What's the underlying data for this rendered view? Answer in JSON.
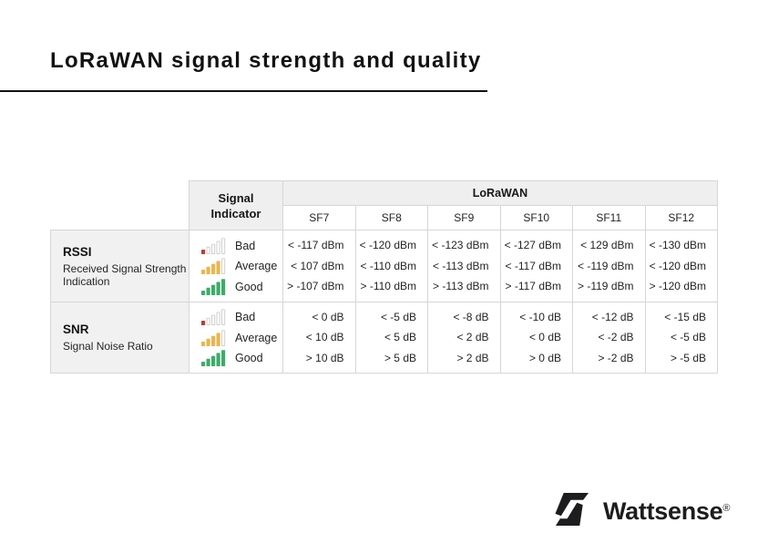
{
  "page": {
    "title": "LoRaWAN signal strength and quality"
  },
  "table": {
    "signal_indicator_header": "Signal Indicator",
    "group_header": "LoRaWAN",
    "sf_columns": [
      "SF7",
      "SF8",
      "SF9",
      "SF10",
      "SF11",
      "SF12"
    ],
    "levels": [
      {
        "label": "Bad",
        "filled": 1,
        "color": "#b04238"
      },
      {
        "label": "Average",
        "filled": 4,
        "color": "#e9b64e"
      },
      {
        "label": "Good",
        "filled": 5,
        "color": "#3dac69"
      }
    ],
    "rows": [
      {
        "name": "RSSI",
        "description": "Received Signal Strength Indication",
        "values": {
          "bad": [
            "< -117 dBm",
            "< -120 dBm",
            "< -123 dBm",
            "< -127 dBm",
            "< 129 dBm",
            "< -130 dBm"
          ],
          "average": [
            "< 107 dBm",
            "< -110 dBm",
            "< -113 dBm",
            "< -117 dBm",
            "< -119 dBm",
            "< -120 dBm"
          ],
          "good": [
            "> -107 dBm",
            "> -110 dBm",
            "> -113 dBm",
            "> -117 dBm",
            "> -119 dBm",
            "> -120 dBm"
          ]
        }
      },
      {
        "name": "SNR",
        "description": "Signal Noise Ratio",
        "values": {
          "bad": [
            "< 0 dB",
            "< -5 dB",
            "< -8 dB",
            "< -10 dB",
            "< -12 dB",
            "< -15 dB"
          ],
          "average": [
            "< 10 dB",
            "< 5 dB",
            "< 2 dB",
            "< 0 dB",
            "< -2 dB",
            "< -5 dB"
          ],
          "good": [
            "> 10 dB",
            "> 5 dB",
            "> 2 dB",
            "> 0 dB",
            "> -2 dB",
            "> -5 dB"
          ]
        }
      }
    ]
  },
  "footer": {
    "brand": "Wattsense",
    "registered": "®"
  },
  "colors": {
    "title": "#121212",
    "brand": "#1d1d1f",
    "border": "#d6d6d8",
    "header-bg": "#efeff0",
    "label-bg": "#f1f1f2",
    "text": "#232323",
    "bar-outline": "#cfcfd1"
  }
}
